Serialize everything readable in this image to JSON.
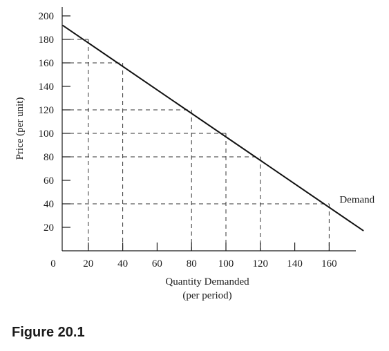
{
  "figure_caption": "Figure 20.1",
  "chart_data": {
    "type": "line",
    "xlabel": "Quantity Demanded",
    "xlabel_sub": "(per period)",
    "ylabel": "Price (per unit)",
    "origin_label": "0",
    "xlim": [
      0,
      170
    ],
    "ylim": [
      0,
      210
    ],
    "x_ticks": [
      20,
      40,
      60,
      80,
      100,
      120,
      140,
      160
    ],
    "y_ticks": [
      20,
      40,
      60,
      80,
      100,
      120,
      140,
      160,
      180,
      200
    ],
    "series": [
      {
        "name": "Demand",
        "x": [
          5,
          180
        ],
        "y": [
          192,
          17
        ]
      }
    ],
    "reference_points": [
      {
        "x": 20,
        "y": 180
      },
      {
        "x": 40,
        "y": 160
      },
      {
        "x": 80,
        "y": 120
      },
      {
        "x": 100,
        "y": 100
      },
      {
        "x": 120,
        "y": 80
      },
      {
        "x": 160,
        "y": 40
      }
    ],
    "grid": false
  }
}
